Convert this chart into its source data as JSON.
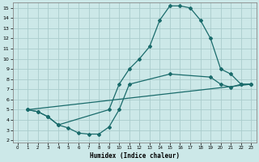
{
  "xlabel": "Humidex (Indice chaleur)",
  "bg_color": "#cce8e8",
  "grid_color": "#aacccc",
  "line_color": "#1a6b6b",
  "xlim": [
    -0.5,
    23.5
  ],
  "ylim": [
    1.8,
    15.5
  ],
  "yticks": [
    2,
    3,
    4,
    5,
    6,
    7,
    8,
    9,
    10,
    11,
    12,
    13,
    14,
    15
  ],
  "xticks": [
    0,
    1,
    2,
    3,
    4,
    5,
    6,
    7,
    8,
    9,
    10,
    11,
    12,
    13,
    14,
    15,
    16,
    17,
    18,
    19,
    20,
    21,
    22,
    23
  ],
  "line1_x": [
    1,
    2,
    3,
    4,
    9,
    10,
    11,
    12,
    13,
    14,
    15,
    16,
    17,
    18,
    19,
    20,
    21,
    22,
    23
  ],
  "line1_y": [
    5.0,
    4.8,
    4.3,
    3.5,
    5.0,
    7.5,
    9.0,
    10.0,
    11.2,
    13.8,
    15.2,
    15.2,
    15.0,
    13.8,
    12.0,
    9.0,
    8.5,
    7.5,
    7.5
  ],
  "line2_x": [
    1,
    2,
    3,
    4,
    5,
    6,
    7,
    8,
    9,
    10,
    11,
    15,
    19,
    20,
    21,
    22,
    23
  ],
  "line2_y": [
    5.0,
    4.8,
    4.3,
    3.5,
    3.2,
    2.7,
    2.6,
    2.6,
    3.3,
    5.0,
    7.5,
    8.5,
    8.2,
    7.5,
    7.2,
    7.5,
    7.5
  ],
  "line3_x": [
    1,
    23
  ],
  "line3_y": [
    5.0,
    7.5
  ],
  "marker": "D",
  "markersize": 2.0,
  "linewidth": 0.9
}
